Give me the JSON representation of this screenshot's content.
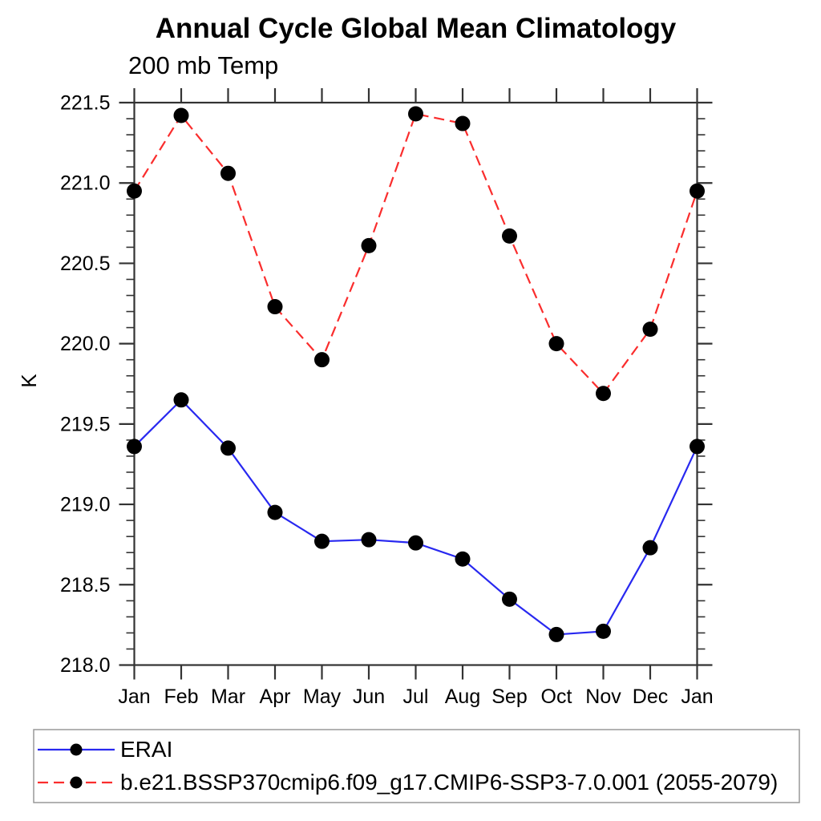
{
  "chart_data": {
    "type": "line",
    "title": "Annual Cycle Global Mean Climatology",
    "subtitle": "200 mb Temp",
    "ylabel": "K",
    "categories": [
      "Jan",
      "Feb",
      "Mar",
      "Apr",
      "May",
      "Jun",
      "Jul",
      "Aug",
      "Sep",
      "Oct",
      "Nov",
      "Dec",
      "Jan"
    ],
    "ylim": [
      218.0,
      221.5
    ],
    "ytick_step": 0.5,
    "yminor_step": 0.1,
    "grid": false,
    "legend_position": "bottom-left-box",
    "series": [
      {
        "name": "ERAI",
        "color": "#2828f0",
        "line_style": "solid",
        "marker": "filled-circle",
        "marker_color": "#000000",
        "values": [
          219.36,
          219.65,
          219.35,
          218.95,
          218.77,
          218.78,
          218.76,
          218.66,
          218.41,
          218.19,
          218.21,
          218.73,
          219.36
        ]
      },
      {
        "name": "b.e21.BSSP370cmip6.f09_g17.CMIP6-SSP3-7.0.001 (2055-2079)",
        "color": "#fa2d2d",
        "line_style": "dashed",
        "marker": "filled-circle",
        "marker_color": "#000000",
        "values": [
          220.95,
          221.42,
          221.06,
          220.23,
          219.9,
          220.61,
          221.43,
          221.37,
          220.67,
          220.0,
          219.69,
          220.09,
          220.95
        ]
      }
    ]
  },
  "axes": {
    "y_tick_labels": [
      "218.0",
      "218.5",
      "219.0",
      "219.5",
      "220.0",
      "220.5",
      "221.0",
      "221.5"
    ],
    "axis_color": "#333333",
    "legend_border_color": "#999999"
  }
}
